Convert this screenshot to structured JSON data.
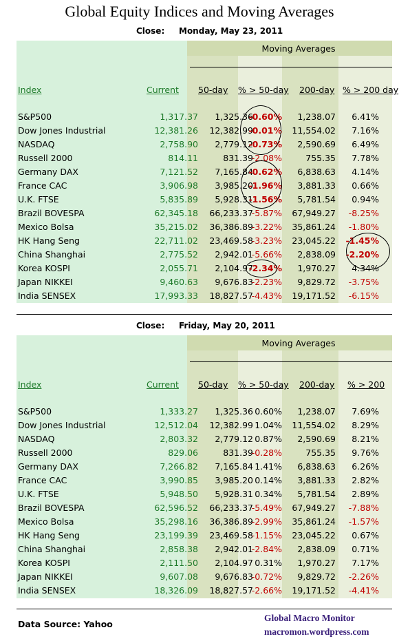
{
  "title": "Global Equity Indices and Moving Averages",
  "section1": {
    "close_label": "Close:",
    "close_date": "Monday, May 23, 2011",
    "ma_title": "Moving Averages",
    "headers": {
      "index": "Index",
      "current": "Current",
      "d50": "50-day",
      "p50": "% > 50-day",
      "d200": "200-day",
      "p200": "% > 200 day"
    },
    "rows": [
      {
        "name": "S&P500",
        "current": "1,317.37",
        "d50": "1,325.36",
        "p50": "-0.60%",
        "d200": "1,238.07",
        "p200": "6.41%"
      },
      {
        "name": "Dow Jones Industrial",
        "current": "12,381.26",
        "d50": "12,382.99",
        "p50": "-0.01%",
        "d200": "11,554.02",
        "p200": "7.16%"
      },
      {
        "name": "NASDAQ",
        "current": "2,758.90",
        "d50": "2,779.12",
        "p50": "-0.73%",
        "d200": "2,590.69",
        "p200": "6.49%"
      },
      {
        "name": "Russell 2000",
        "current": "814.11",
        "d50": "831.39",
        "p50": "-2.08%",
        "d200": "755.35",
        "p200": "7.78%"
      },
      {
        "name": "Germany DAX",
        "current": "7,121.52",
        "d50": "7,165.84",
        "p50": "-0.62%",
        "d200": "6,838.63",
        "p200": "4.14%"
      },
      {
        "name": "France CAC",
        "current": "3,906.98",
        "d50": "3,985.20",
        "p50": "-1.96%",
        "d200": "3,881.33",
        "p200": "0.66%"
      },
      {
        "name": "U.K. FTSE",
        "current": "5,835.89",
        "d50": "5,928.31",
        "p50": "-1.56%",
        "d200": "5,781.54",
        "p200": "0.94%"
      },
      {
        "name": "Brazil BOVESPA",
        "current": "62,345.18",
        "d50": "66,233.37",
        "p50": "-5.87%",
        "d200": "67,949.27",
        "p200": "-8.25%"
      },
      {
        "name": "Mexico Bolsa",
        "current": "35,215.02",
        "d50": "36,386.89",
        "p50": "-3.22%",
        "d200": "35,861.24",
        "p200": "-1.80%"
      },
      {
        "name": "HK  Hang Seng",
        "current": "22,711.02",
        "d50": "23,469.58",
        "p50": "-3.23%",
        "d200": "23,045.22",
        "p200": "-1.45%"
      },
      {
        "name": "China Shanghai",
        "current": "2,775.52",
        "d50": "2,942.01",
        "p50": "-5.66%",
        "d200": "2,838.09",
        "p200": "-2.20%"
      },
      {
        "name": "Korea KOSPI",
        "current": "2,055.71",
        "d50": "2,104.97",
        "p50": "-2.34%",
        "d200": "1,970.27",
        "p200": "4.34%"
      },
      {
        "name": "Japan NIKKEI",
        "current": "9,460.63",
        "d50": "9,676.83",
        "p50": "-2.23%",
        "d200": "9,829.72",
        "p200": "-3.75%"
      },
      {
        "name": "India SENSEX",
        "current": "17,993.33",
        "d50": "18,827.57",
        "p50": "-4.43%",
        "d200": "19,171.52",
        "p200": "-6.15%"
      }
    ]
  },
  "section2": {
    "close_label": "Close:",
    "close_date": "Friday, May 20, 2011",
    "ma_title": "Moving Averages",
    "headers": {
      "index": "Index",
      "current": "Current",
      "d50": "50-day",
      "p50": "% > 50-day",
      "d200": "200-day",
      "p200": "% > 200"
    },
    "rows": [
      {
        "name": "S&P500",
        "current": "1,333.27",
        "d50": "1,325.36",
        "p50": "0.60%",
        "d200": "1,238.07",
        "p200": "7.69%"
      },
      {
        "name": "Dow Jones Industrial",
        "current": "12,512.04",
        "d50": "12,382.99",
        "p50": "1.04%",
        "d200": "11,554.02",
        "p200": "8.29%"
      },
      {
        "name": "NASDAQ",
        "current": "2,803.32",
        "d50": "2,779.12",
        "p50": "0.87%",
        "d200": "2,590.69",
        "p200": "8.21%"
      },
      {
        "name": "Russell 2000",
        "current": "829.06",
        "d50": "831.39",
        "p50": "-0.28%",
        "d200": "755.35",
        "p200": "9.76%"
      },
      {
        "name": "Germany DAX",
        "current": "7,266.82",
        "d50": "7,165.84",
        "p50": "1.41%",
        "d200": "6,838.63",
        "p200": "6.26%"
      },
      {
        "name": "France CAC",
        "current": "3,990.85",
        "d50": "3,985.20",
        "p50": "0.14%",
        "d200": "3,881.33",
        "p200": "2.82%"
      },
      {
        "name": "U.K. FTSE",
        "current": "5,948.50",
        "d50": "5,928.31",
        "p50": "0.34%",
        "d200": "5,781.54",
        "p200": "2.89%"
      },
      {
        "name": "Brazil BOVESPA",
        "current": "62,596.52",
        "d50": "66,233.37",
        "p50": "-5.49%",
        "d200": "67,949.27",
        "p200": "-7.88%"
      },
      {
        "name": "Mexico Bolsa",
        "current": "35,298.16",
        "d50": "36,386.89",
        "p50": "-2.99%",
        "d200": "35,861.24",
        "p200": "-1.57%"
      },
      {
        "name": "HK  Hang Seng",
        "current": "23,199.39",
        "d50": "23,469.58",
        "p50": "-1.15%",
        "d200": "23,045.22",
        "p200": "0.67%"
      },
      {
        "name": "China Shanghai",
        "current": "2,858.38",
        "d50": "2,942.01",
        "p50": "-2.84%",
        "d200": "2,838.09",
        "p200": "0.71%"
      },
      {
        "name": "Korea KOSPI",
        "current": "2,111.50",
        "d50": "2,104.97",
        "p50": "0.31%",
        "d200": "1,970.27",
        "p200": "7.17%"
      },
      {
        "name": "Japan NIKKEI",
        "current": "9,607.08",
        "d50": "9,676.83",
        "p50": "-0.72%",
        "d200": "9,829.72",
        "p200": "-2.26%"
      },
      {
        "name": "India SENSEX",
        "current": "18,326.09",
        "d50": "18,827.57",
        "p50": "-2.66%",
        "d200": "19,171.52",
        "p200": "-4.41%"
      }
    ]
  },
  "footer": {
    "source": "Data Source: Yahoo",
    "brand": "Global Macro Monitor",
    "site": "macromon.wordpress.com"
  },
  "colors": {
    "positive_current": "#1e7a2a",
    "negative": "#c00000",
    "footer_brand": "#3a1f7a"
  }
}
